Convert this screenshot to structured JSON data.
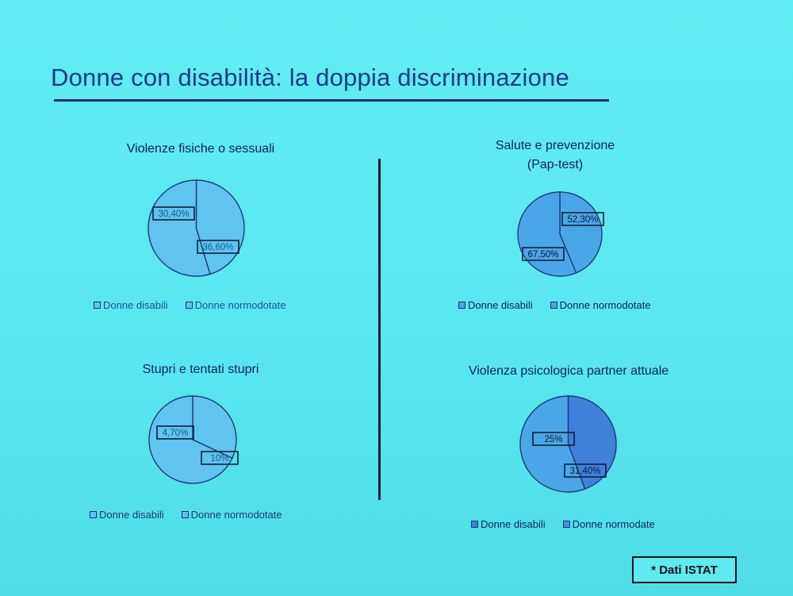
{
  "slide": {
    "title": "Donne con disabilità: la doppia discriminazione",
    "source": "* Dati ISTAT"
  },
  "colors": {
    "background": "#58e6ee",
    "title": "#1a3a8a",
    "pie_fill_light": "#5fc4ef",
    "pie_fill_mid": "#4aa6e6",
    "pie_fill_dark": "#3f80da",
    "pie_stroke": "#1f3a7a"
  },
  "chart_data": [
    {
      "type": "pie",
      "title": "Violenze fisiche o sessuali",
      "slices": [
        {
          "label": "Donne disabili",
          "value": 30.4,
          "display": "30,40%"
        },
        {
          "label": "Donne normodotate",
          "value": 36.6,
          "display": "36,60%"
        }
      ],
      "legend_position": "bottom"
    },
    {
      "type": "pie",
      "title": "Salute e prevenzione (Pap-test)",
      "title_lines": [
        "Salute e prevenzione",
        "(Pap-test)"
      ],
      "slices": [
        {
          "label": "Donne disabili",
          "value": 52.3,
          "display": "52,30%"
        },
        {
          "label": "Donne normodotate",
          "value": 67.5,
          "display": "67,50%"
        }
      ],
      "legend_position": "bottom"
    },
    {
      "type": "pie",
      "title": "Stupri e tentati stupri",
      "slices": [
        {
          "label": "Donne disabili",
          "value": 4.7,
          "display": "4,70%"
        },
        {
          "label": "Donne normodotate",
          "value": 10,
          "display": "10%"
        }
      ],
      "legend_position": "bottom"
    },
    {
      "type": "pie",
      "title": "Violenza psicologica partner attuale",
      "slices": [
        {
          "label": "Donne disabili",
          "value": 25,
          "display": "25%"
        },
        {
          "label": "Donne normodate",
          "value": 31.4,
          "display": "31,40%"
        }
      ],
      "legend_position": "bottom"
    }
  ]
}
